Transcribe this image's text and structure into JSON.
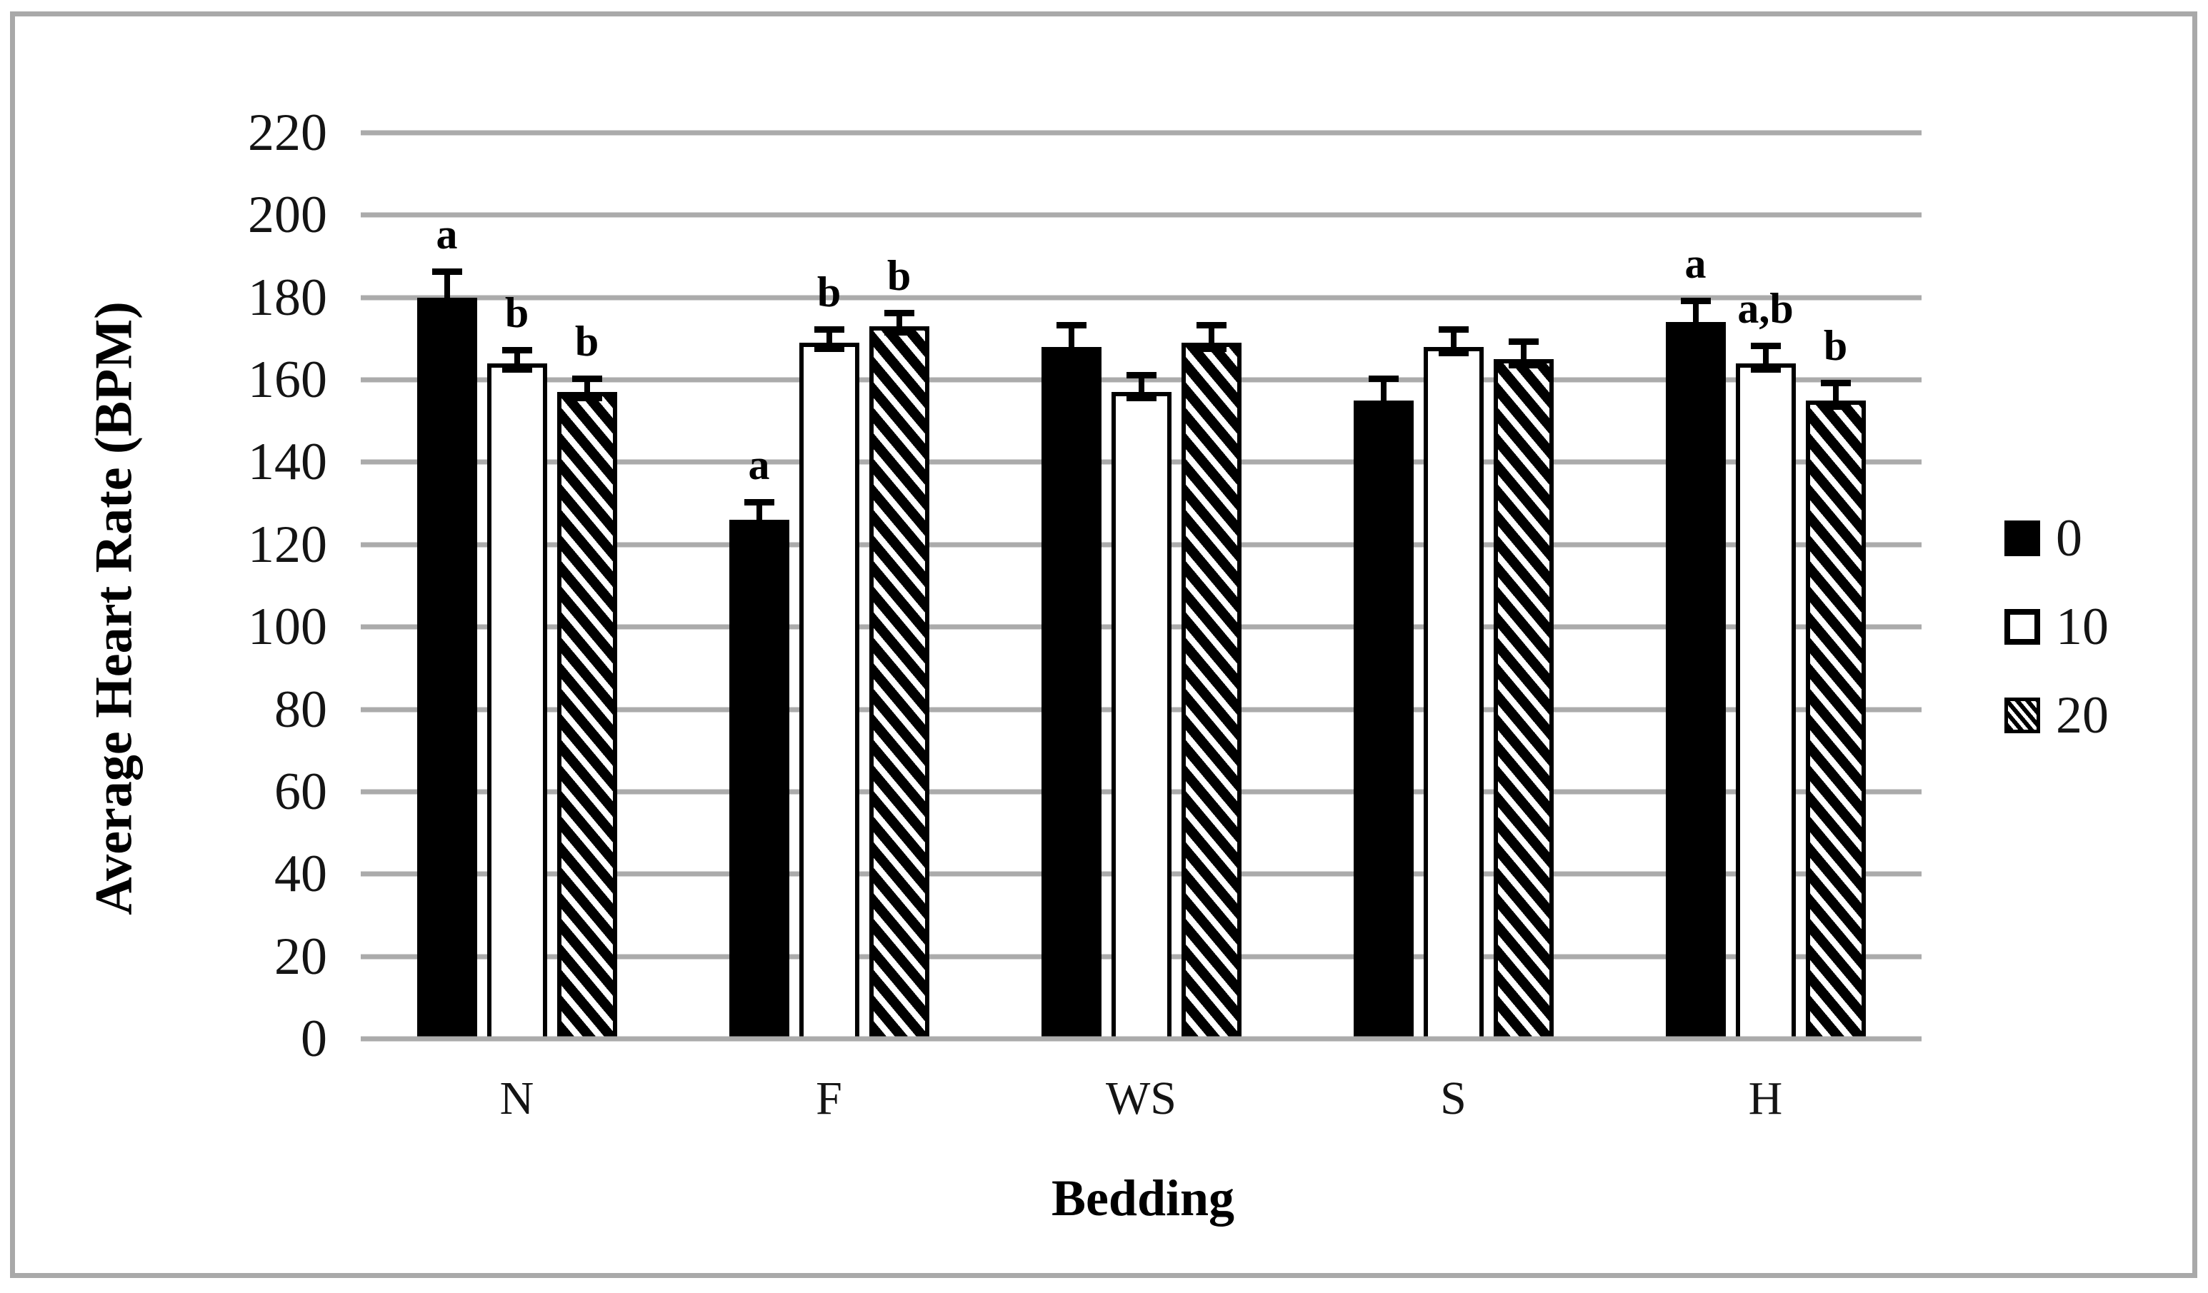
{
  "figure": {
    "background": "#ffffff",
    "frame_color": "#a9a9a9",
    "grid_color": "#ababab",
    "bar_fill_colors": {
      "solid": "#000000",
      "outline": "#000000",
      "hatch_fg": "#000000",
      "hatch_bg": "#ffffff"
    }
  },
  "chart_data": {
    "type": "bar",
    "title": "",
    "xlabel": "Bedding",
    "ylabel": "Average Heart Rate (BPM)",
    "categories": [
      "N",
      "F",
      "WS",
      "S",
      "H"
    ],
    "series": [
      {
        "name": "0",
        "fill": "solid-black",
        "values": [
          180,
          126,
          168,
          155,
          174
        ],
        "errors": [
          7,
          5,
          6,
          6,
          6
        ],
        "letters": [
          "a",
          "a",
          "",
          "",
          "a"
        ]
      },
      {
        "name": "10",
        "fill": "white-outlined",
        "values": [
          164,
          169,
          157,
          168,
          164
        ],
        "errors": [
          4,
          4,
          5,
          5,
          5
        ],
        "letters": [
          "b",
          "b",
          "",
          "",
          "a,b"
        ]
      },
      {
        "name": "20",
        "fill": "diagonal-hatch",
        "values": [
          157,
          173,
          169,
          165,
          155
        ],
        "errors": [
          4,
          4,
          5,
          5,
          5
        ],
        "letters": [
          "b",
          "b",
          "",
          "",
          "b"
        ]
      }
    ],
    "ylim": [
      0,
      220
    ],
    "ytick_step": 20,
    "yticks": [
      "0",
      "20",
      "40",
      "60",
      "80",
      "100",
      "120",
      "140",
      "160",
      "180",
      "200",
      "220"
    ],
    "grid": "horizontal-only",
    "legend_position": "right",
    "error_bars": "upper, capped",
    "annotations": "significance letters above error bars"
  }
}
